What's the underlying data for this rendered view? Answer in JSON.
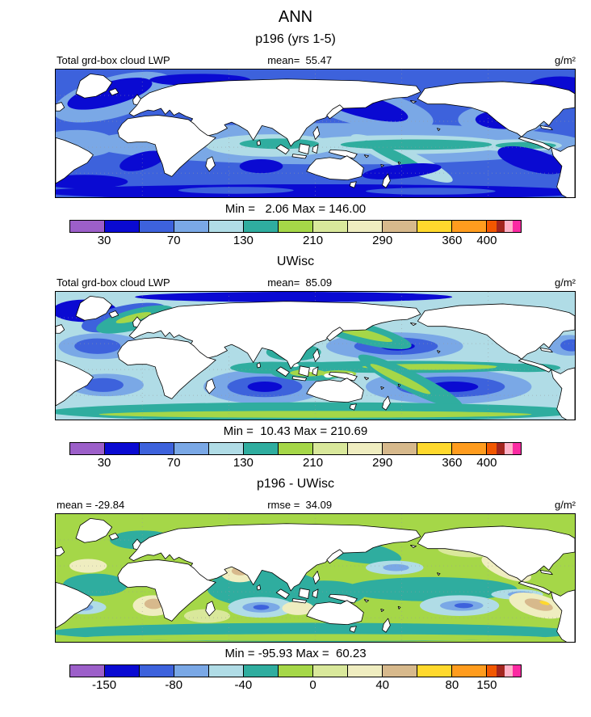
{
  "figure": {
    "title": "ANN",
    "background": "#ffffff"
  },
  "chart_data": {
    "type": "heatmap",
    "subtype": "filled-contour global maps (cylindrical projection), 3 panels with labelbars",
    "title": "ANN",
    "units": "g/m²",
    "colorbar_colors": [
      "#9C5FC9",
      "#0A0AD2",
      "#3D62DC",
      "#7AA8E6",
      "#B0DCE6",
      "#2FAD9F",
      "#A5D748",
      "#D9E89B",
      "#EFEDC0",
      "#D7B98C",
      "#FFD92D",
      "#FF9C1E"
    ],
    "colorbar_tail_colors": [
      "#F25800",
      "#A3261F",
      "#FFB2C8",
      "#FB2AA2"
    ],
    "panels": [
      {
        "subtitle": "p196 (yrs 1-5)",
        "header_left": "Total grd-box cloud LWP",
        "header_center": "mean=  55.47",
        "units": "g/m²",
        "mean": 55.47,
        "min": 2.06,
        "max": 146.0,
        "min_max_text": "Min =   2.06 Max = 146.00",
        "ticks": [
          "30",
          "70",
          "130",
          "210",
          "290",
          "360",
          "400"
        ]
      },
      {
        "subtitle": "UWisc",
        "header_left": "Total grd-box cloud LWP",
        "header_center": "mean=  85.09",
        "units": "g/m²",
        "mean": 85.09,
        "min": 10.43,
        "max": 210.69,
        "min_max_text": "Min =  10.43 Max = 210.69",
        "ticks": [
          "30",
          "70",
          "130",
          "210",
          "290",
          "360",
          "400"
        ]
      },
      {
        "subtitle": "p196 - UWisc",
        "header_left": "mean = -29.84",
        "header_center": "rmse =  34.09",
        "units": "g/m²",
        "mean": -29.84,
        "rmse": 34.09,
        "min": -95.93,
        "max": 60.23,
        "min_max_text": "Min = -95.93 Max =  60.23",
        "ticks": [
          "-150",
          "-80",
          "-40",
          "0",
          "40",
          "80",
          "150"
        ]
      }
    ]
  }
}
